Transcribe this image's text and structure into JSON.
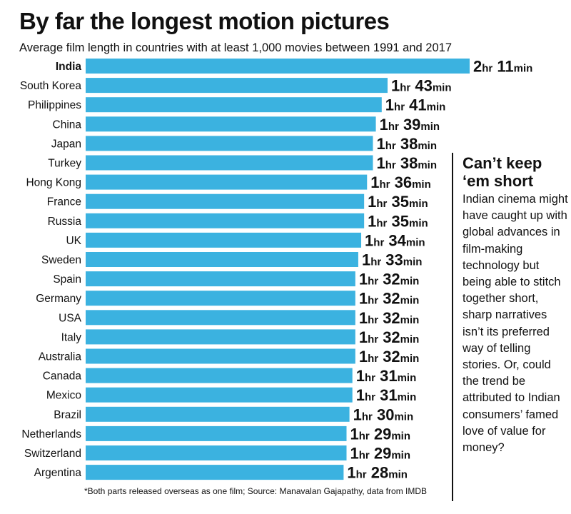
{
  "title": "By far the longest motion pictures",
  "subtitle": "Average film length in countries with at least 1,000 movies between 1991 and 2017",
  "sidebar": {
    "heading": "Can’t keep ‘em short",
    "body": "Indian cinema might have caught up with global advances in film-making technology but being able to stitch together short, sharp narratives isn’t its preferred way of telling stories. Or, could the trend be attributed to Indian consumers’ famed love of value for money?"
  },
  "footnote": "*Both parts released overseas as one film;  Source: Manavalan Gajapathy, data from IMDB",
  "chart_data": {
    "type": "bar",
    "orientation": "horizontal",
    "title": "By far the longest motion pictures",
    "subtitle": "Average film length in countries with at least 1,000 movies between 1991 and 2017",
    "unit": "minutes",
    "colors": {
      "bar": "#3bb2e0"
    },
    "highlight": "India",
    "bars": [
      {
        "category": "India",
        "hours": "2",
        "minutes": "11",
        "value": 131
      },
      {
        "category": "South Korea",
        "hours": "1",
        "minutes": "43",
        "value": 103
      },
      {
        "category": "Philippines",
        "hours": "1",
        "minutes": "41",
        "value": 101
      },
      {
        "category": "China",
        "hours": "1",
        "minutes": "39",
        "value": 99
      },
      {
        "category": "Japan",
        "hours": "1",
        "minutes": "38",
        "value": 98
      },
      {
        "category": "Turkey",
        "hours": "1",
        "minutes": "38",
        "value": 98
      },
      {
        "category": "Hong Kong",
        "hours": "1",
        "minutes": "36",
        "value": 96
      },
      {
        "category": "France",
        "hours": "1",
        "minutes": "35",
        "value": 95
      },
      {
        "category": "Russia",
        "hours": "1",
        "minutes": "35",
        "value": 95
      },
      {
        "category": "UK",
        "hours": "1",
        "minutes": "34",
        "value": 94
      },
      {
        "category": "Sweden",
        "hours": "1",
        "minutes": "33",
        "value": 93
      },
      {
        "category": "Spain",
        "hours": "1",
        "minutes": "32",
        "value": 92
      },
      {
        "category": "Germany",
        "hours": "1",
        "minutes": "32",
        "value": 92
      },
      {
        "category": "USA",
        "hours": "1",
        "minutes": "32",
        "value": 92
      },
      {
        "category": "Italy",
        "hours": "1",
        "minutes": "32",
        "value": 92
      },
      {
        "category": "Australia",
        "hours": "1",
        "minutes": "32",
        "value": 92
      },
      {
        "category": "Canada",
        "hours": "1",
        "minutes": "31",
        "value": 91
      },
      {
        "category": "Mexico",
        "hours": "1",
        "minutes": "31",
        "value": 91
      },
      {
        "category": "Brazil",
        "hours": "1",
        "minutes": "30",
        "value": 90
      },
      {
        "category": "Netherlands",
        "hours": "1",
        "minutes": "29",
        "value": 89
      },
      {
        "category": "Switzerland",
        "hours": "1",
        "minutes": "29",
        "value": 89
      },
      {
        "category": "Argentina",
        "hours": "1",
        "minutes": "28",
        "value": 88
      }
    ],
    "value_label_units": {
      "hours": "hr",
      "minutes": "min"
    }
  }
}
